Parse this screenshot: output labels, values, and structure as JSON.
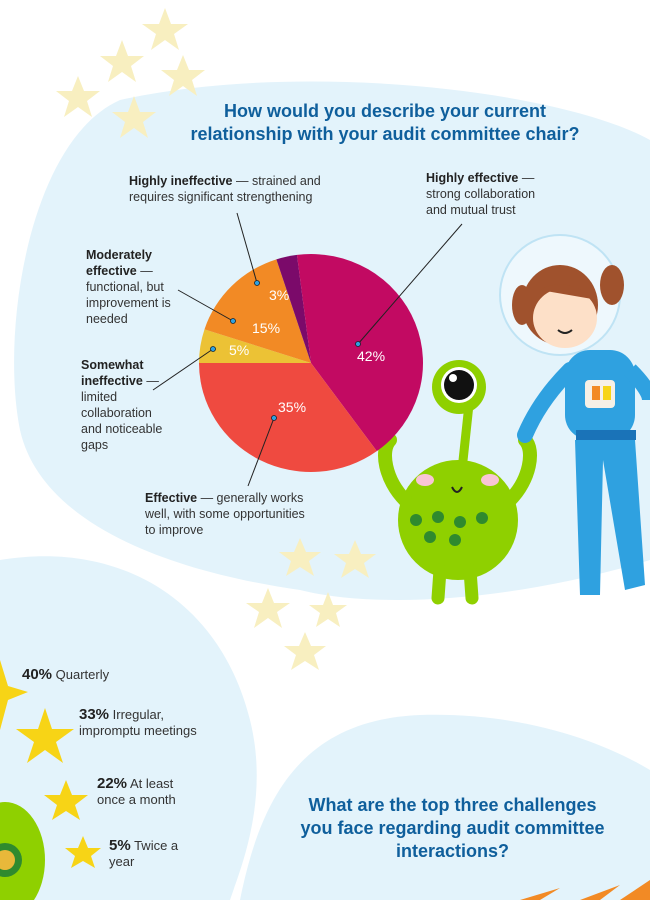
{
  "question1": "How would you describe your current relationship with your audit committee chair?",
  "question2": "What are the top three challenges you face regarding audit committee interactions?",
  "chart_data": {
    "type": "pie",
    "title": "How would you describe your current relationship with your audit committee chair?",
    "slices": [
      {
        "label_bold": "Somewhat ineffective",
        "label_rest": " — limited collaboration and noticeable gaps",
        "value": 5,
        "value_label": "5%",
        "color": "#ecc235"
      },
      {
        "label_bold": "Moderately effective",
        "label_rest": " — functional, but improvement is needed",
        "value": 15,
        "value_label": "15%",
        "color": "#f28a25"
      },
      {
        "label_bold": "Highly ineffective",
        "label_rest": " — strained and requires significant strengthening",
        "value": 3,
        "value_label": "3%",
        "color": "#7b0a6a"
      },
      {
        "label_bold": "Highly effective",
        "label_rest": " — strong collaboration and mutual trust",
        "value": 42,
        "value_label": "42%",
        "color": "#c20a62"
      },
      {
        "label_bold": "Effective",
        "label_rest": " — generally works well, with some opportunities to improve",
        "value": 35,
        "value_label": "35%",
        "color": "#ef4a40"
      }
    ]
  },
  "frequency": [
    {
      "pct": "40%",
      "text": "Quarterly"
    },
    {
      "pct": "33%",
      "text": "Irregular, impromptu meetings"
    },
    {
      "pct": "22%",
      "text": "At least once a month"
    },
    {
      "pct": "5%",
      "text": "Twice a year"
    }
  ],
  "colors": {
    "title": "#0f5f9c",
    "background_blob": "#e3f3fb",
    "star": "#f7d416",
    "star_pale": "#f8efc0"
  }
}
